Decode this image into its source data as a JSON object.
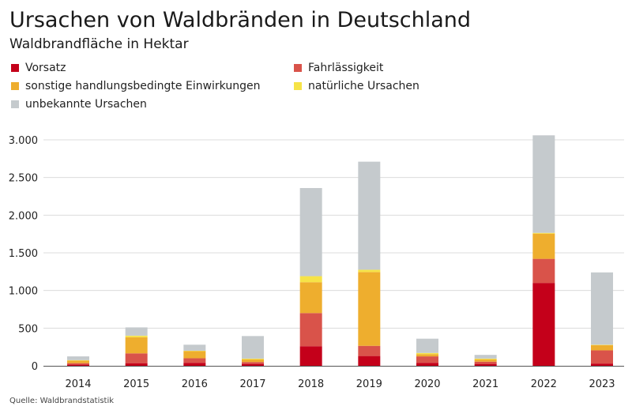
{
  "title": "Ursachen von Waldbränden in Deutschland",
  "subtitle": "Waldbrandfläche in Hektar",
  "source": "Quelle: Waldbrandstatistik",
  "chart_data": {
    "type": "bar",
    "stacked": true,
    "categories": [
      "2014",
      "2015",
      "2016",
      "2017",
      "2018",
      "2019",
      "2020",
      "2021",
      "2022",
      "2023"
    ],
    "ylim": [
      0,
      3000
    ],
    "yticks": [
      0,
      500,
      1000,
      1500,
      2000,
      2500,
      3000
    ],
    "ytick_labels": [
      "0",
      "500",
      "1.000",
      "1.500",
      "2.000",
      "2.500",
      "3.000"
    ],
    "grid": true,
    "legend_position": "top",
    "series": [
      {
        "name": "Vorsatz",
        "color": "#c4001a",
        "values": [
          15,
          35,
          40,
          25,
          260,
          130,
          40,
          25,
          1100,
          30
        ]
      },
      {
        "name": "Fahrlässigkeit",
        "color": "#d9534a",
        "values": [
          20,
          130,
          60,
          25,
          440,
          135,
          85,
          30,
          320,
          175
        ]
      },
      {
        "name": "sonstige handlungsbedingte Einwirkungen",
        "color": "#eeae2e",
        "values": [
          35,
          215,
          95,
          35,
          410,
          980,
          30,
          30,
          335,
          70
        ]
      },
      {
        "name": "natürliche Ursachen",
        "color": "#f6e347",
        "values": [
          5,
          20,
          5,
          10,
          80,
          30,
          15,
          10,
          10,
          5
        ]
      },
      {
        "name": "unbekannte Ursachen",
        "color": "#c5cacd",
        "values": [
          50,
          110,
          80,
          300,
          1170,
          1435,
          190,
          50,
          1295,
          960
        ]
      }
    ]
  }
}
